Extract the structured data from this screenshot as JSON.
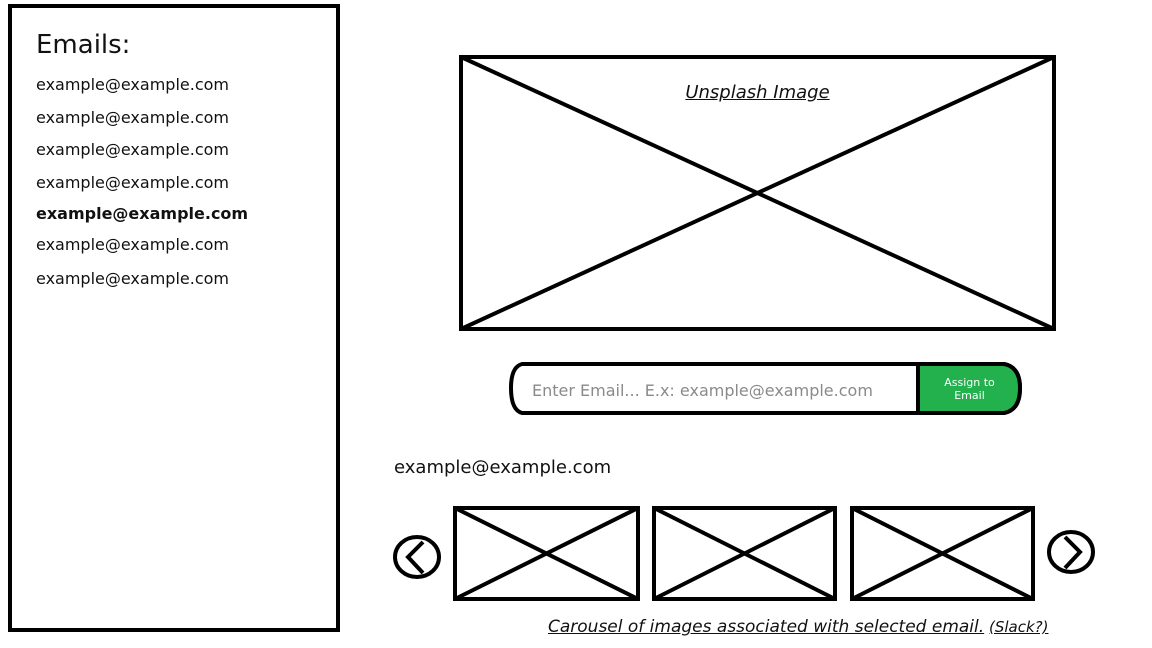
{
  "sidebar": {
    "title": "Emails:",
    "emails": [
      {
        "label": "example@example.com",
        "selected": false
      },
      {
        "label": "example@example.com",
        "selected": false
      },
      {
        "label": "example@example.com",
        "selected": false
      },
      {
        "label": "example@example.com",
        "selected": false
      },
      {
        "label": "example@example.com",
        "selected": true
      },
      {
        "label": "example@example.com",
        "selected": false
      },
      {
        "label": "example@example.com",
        "selected": false
      }
    ]
  },
  "main_image": {
    "label": "Unsplash Image"
  },
  "assign": {
    "placeholder": "Enter Email... E.x: example@example.com",
    "button_label": "Assign to Email",
    "button_color": "#22b14c"
  },
  "carousel": {
    "selected_email": "example@example.com",
    "caption": "Carousel of images associated with selected email.",
    "caption_note": "(Slack?)",
    "prev_icon": "chevron-left-circle-icon",
    "next_icon": "chevron-right-circle-icon",
    "slide_count": 3
  }
}
